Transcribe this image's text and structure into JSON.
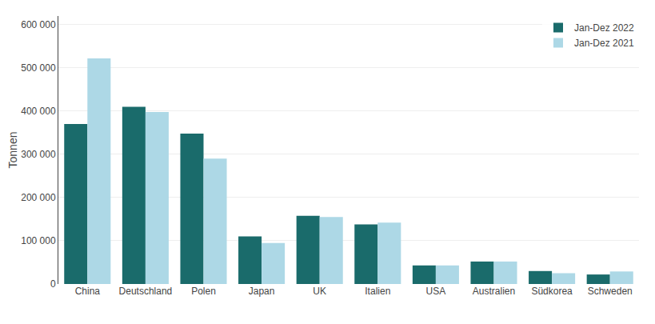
{
  "chart_data": {
    "type": "bar",
    "categories": [
      "China",
      "Deutschland",
      "Polen",
      "Japan",
      "UK",
      "Italien",
      "USA",
      "Australien",
      "Südkorea",
      "Schweden"
    ],
    "series": [
      {
        "name": "Jan-Dez 2022",
        "color": "#1a6b6b",
        "values": [
          370000,
          410000,
          348000,
          110000,
          158000,
          138000,
          43000,
          52000,
          30000,
          22000
        ]
      },
      {
        "name": "Jan-Dez 2021",
        "color": "#add8e6",
        "values": [
          522000,
          398000,
          290000,
          95000,
          155000,
          142000,
          43000,
          52000,
          25000,
          29000
        ]
      }
    ],
    "ylabel": "Tonnen",
    "ylim": [
      0,
      620000
    ],
    "yticks": [
      0,
      {
        "value": 100000,
        "label": "100 000"
      },
      {
        "value": 200000,
        "label": "200 000"
      },
      {
        "value": 300000,
        "label": "300 000"
      },
      {
        "value": 400000,
        "label": "400 000"
      },
      {
        "value": 500000,
        "label": "500 000"
      },
      {
        "value": 600000,
        "label": "600 000"
      }
    ],
    "grid": true,
    "legend": "upper right"
  }
}
